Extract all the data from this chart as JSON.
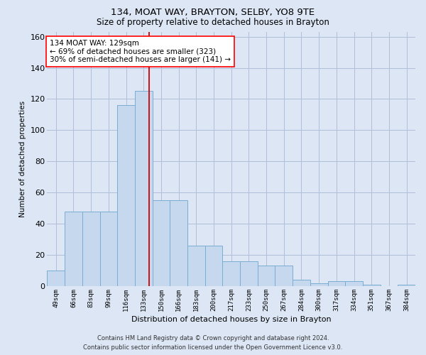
{
  "title": "134, MOAT WAY, BRAYTON, SELBY, YO8 9TE",
  "subtitle": "Size of property relative to detached houses in Brayton",
  "xlabel": "Distribution of detached houses by size in Brayton",
  "ylabel": "Number of detached properties",
  "bar_labels": [
    "49sqm",
    "66sqm",
    "83sqm",
    "99sqm",
    "116sqm",
    "133sqm",
    "150sqm",
    "166sqm",
    "183sqm",
    "200sqm",
    "217sqm",
    "233sqm",
    "250sqm",
    "267sqm",
    "284sqm",
    "300sqm",
    "317sqm",
    "334sqm",
    "351sqm",
    "367sqm",
    "384sqm"
  ],
  "bar_heights": [
    10,
    48,
    48,
    48,
    116,
    125,
    55,
    55,
    26,
    26,
    16,
    16,
    13,
    13,
    4,
    2,
    3,
    3,
    1,
    0,
    1
  ],
  "bar_color": "#c5d8ee",
  "bar_edge_color": "#7aadd4",
  "vline_color": "#cc0000",
  "vline_pos": 5.3,
  "ylim": [
    0,
    163
  ],
  "yticks": [
    0,
    20,
    40,
    60,
    80,
    100,
    120,
    140,
    160
  ],
  "annotation_text": "134 MOAT WAY: 129sqm\n← 69% of detached houses are smaller (323)\n30% of semi-detached houses are larger (141) →",
  "footer_line1": "Contains HM Land Registry data © Crown copyright and database right 2024.",
  "footer_line2": "Contains public sector information licensed under the Open Government Licence v3.0.",
  "bg_color": "#dce6f5",
  "grid_color": "#b0bfd8"
}
